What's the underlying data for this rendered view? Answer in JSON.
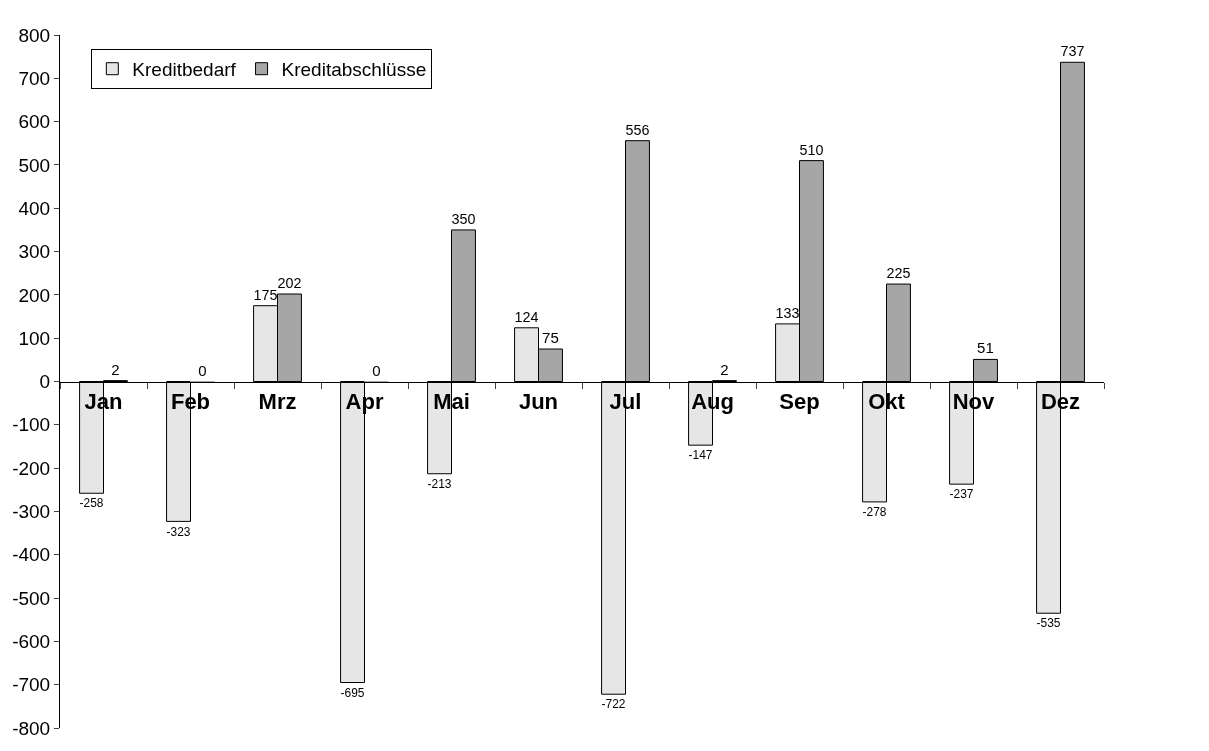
{
  "chart_data": {
    "type": "bar",
    "categories": [
      "Jan",
      "Feb",
      "Mrz",
      "Apr",
      "Mai",
      "Jun",
      "Jul",
      "Aug",
      "Sep",
      "Okt",
      "Nov",
      "Dez"
    ],
    "series": [
      {
        "name": "Kreditbedarf",
        "color": "#e6e6e6",
        "values": [
          -258,
          -323,
          175,
          -695,
          -213,
          124,
          -722,
          -147,
          133,
          -278,
          -237,
          -535
        ]
      },
      {
        "name": "Kreditabschlüsse",
        "color": "#a6a6a6",
        "values": [
          2,
          0,
          202,
          0,
          350,
          75,
          556,
          2,
          510,
          225,
          51,
          737
        ]
      }
    ],
    "ylim": [
      -800,
      800
    ],
    "yticks": [
      -800,
      -700,
      -600,
      -500,
      -400,
      -300,
      -200,
      -100,
      0,
      100,
      200,
      300,
      400,
      500,
      600,
      700,
      800
    ],
    "data_labels": true,
    "legend": "top left"
  }
}
